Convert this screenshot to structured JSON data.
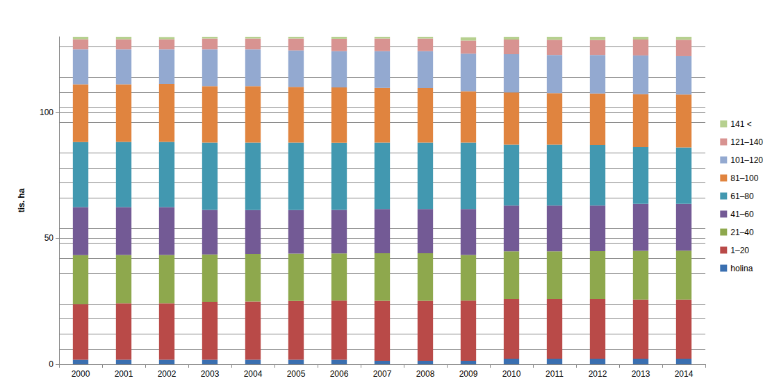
{
  "chart_data": {
    "type": "bar",
    "stacked": true,
    "y_label": "tis. ha",
    "categories": [
      "2000",
      "2001",
      "2002",
      "2003",
      "2004",
      "2005",
      "2006",
      "2007",
      "2008",
      "2009",
      "2010",
      "2011",
      "2012",
      "2013",
      "2014"
    ],
    "ylim": [
      0,
      130
    ],
    "yticks": [
      0,
      50,
      100
    ],
    "grid": true,
    "legend": "right",
    "series": [
      {
        "name": "holina",
        "color": "#3a6fb0",
        "values": [
          1.8,
          1.8,
          1.8,
          1.8,
          1.8,
          1.8,
          1.8,
          1.4,
          1.4,
          1.4,
          2.2,
          2.2,
          2.2,
          2.2,
          2.2
        ]
      },
      {
        "name": "1–20",
        "color": "#b94a48",
        "values": [
          22.1,
          22.4,
          22.4,
          23.0,
          23.1,
          23.3,
          23.5,
          23.8,
          23.8,
          23.9,
          23.7,
          23.7,
          23.7,
          23.5,
          23.5
        ]
      },
      {
        "name": "21–40",
        "color": "#8ea84d",
        "values": [
          19.4,
          19.2,
          19.2,
          18.8,
          18.9,
          18.8,
          18.7,
          18.9,
          18.9,
          18.1,
          18.9,
          18.9,
          19.0,
          19.3,
          19.4
        ]
      },
      {
        "name": "41–60",
        "color": "#735a95",
        "values": [
          19.1,
          19.0,
          19.0,
          17.7,
          17.4,
          17.3,
          17.3,
          17.5,
          17.5,
          18.2,
          18.2,
          18.2,
          18.1,
          18.7,
          18.6
        ]
      },
      {
        "name": "61–80",
        "color": "#4298b0",
        "values": [
          25.8,
          25.9,
          25.9,
          26.7,
          26.8,
          26.8,
          26.6,
          26.4,
          26.4,
          26.4,
          24.2,
          24.2,
          24.0,
          22.5,
          22.4
        ]
      },
      {
        "name": "81–100",
        "color": "#e0843f",
        "values": [
          22.9,
          22.8,
          23.0,
          22.4,
          22.4,
          22.1,
          22.0,
          21.7,
          21.6,
          20.4,
          20.7,
          20.4,
          20.5,
          21.0,
          21.0
        ]
      },
      {
        "name": "101–120",
        "color": "#93a9d0",
        "values": [
          13.9,
          13.9,
          13.7,
          14.6,
          14.6,
          14.5,
          14.4,
          14.6,
          14.7,
          14.9,
          15.2,
          15.2,
          15.3,
          15.4,
          15.2
        ]
      },
      {
        "name": "121–140",
        "color": "#d89391",
        "values": [
          4.0,
          4.0,
          4.0,
          4.3,
          4.3,
          4.7,
          4.9,
          5.0,
          5.0,
          5.2,
          5.8,
          6.0,
          5.9,
          6.3,
          6.5
        ]
      },
      {
        "name": "141 <",
        "color": "#b6d08f",
        "values": [
          1.0,
          1.0,
          0.9,
          0.7,
          0.7,
          0.7,
          0.8,
          0.7,
          0.7,
          1.3,
          1.1,
          1.2,
          1.3,
          1.1,
          1.2
        ]
      }
    ]
  }
}
